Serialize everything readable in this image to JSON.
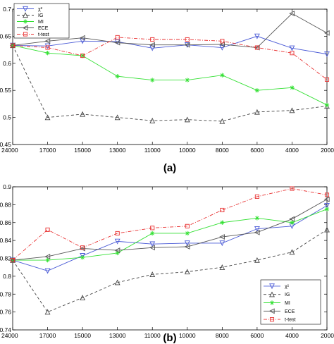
{
  "chart_data": [
    {
      "type": "line",
      "caption": "(a)",
      "x": [
        "24000",
        "17000",
        "15000",
        "13000",
        "11000",
        "10000",
        "8000",
        "6000",
        "4000",
        "2000"
      ],
      "ylim": [
        0.45,
        0.7
      ],
      "yticks": [
        "0.45",
        "0.5",
        "0.55",
        "0.6",
        "0.65",
        "0.7"
      ],
      "legend_position": "top-left",
      "series": [
        {
          "name": "χ²",
          "values": [
            0.633,
            0.632,
            0.641,
            0.64,
            0.628,
            0.634,
            0.629,
            0.65,
            0.628,
            0.617
          ],
          "color": "#4a5ad6",
          "dash": "",
          "marker": "triangle-down"
        },
        {
          "name": "IG",
          "values": [
            0.633,
            0.5,
            0.506,
            0.5,
            0.494,
            0.496,
            0.493,
            0.51,
            0.513,
            0.521
          ],
          "color": "#444444",
          "dash": "4,3",
          "marker": "triangle-up"
        },
        {
          "name": "MI",
          "values": [
            0.633,
            0.619,
            0.614,
            0.576,
            0.569,
            0.569,
            0.578,
            0.55,
            0.555,
            0.523
          ],
          "color": "#33e033",
          "dash": "",
          "marker": "star"
        },
        {
          "name": "ECE",
          "values": [
            0.633,
            0.641,
            0.647,
            0.638,
            0.634,
            0.634,
            0.635,
            0.629,
            0.692,
            0.656
          ],
          "color": "#555555",
          "dash": "",
          "marker": "triangle-left"
        },
        {
          "name": "t-test",
          "values": [
            0.633,
            0.629,
            0.614,
            0.648,
            0.644,
            0.644,
            0.641,
            0.629,
            0.619,
            0.57
          ],
          "color": "#e83030",
          "dash": "5,2,1,2",
          "marker": "square"
        }
      ]
    },
    {
      "type": "line",
      "caption": "(b)",
      "x": [
        "24000",
        "17000",
        "15000",
        "13000",
        "11000",
        "10000",
        "8000",
        "6000",
        "4000",
        "2000"
      ],
      "ylim": [
        0.74,
        0.9
      ],
      "yticks": [
        "0.74",
        "0.76",
        "0.78",
        "0.8",
        "0.82",
        "0.84",
        "0.86",
        "0.88",
        "0.9"
      ],
      "legend_position": "bottom-right",
      "series": [
        {
          "name": "χ²",
          "values": [
            0.818,
            0.806,
            0.823,
            0.839,
            0.836,
            0.837,
            0.837,
            0.853,
            0.856,
            0.879
          ],
          "color": "#4a5ad6",
          "dash": "",
          "marker": "triangle-down"
        },
        {
          "name": "IG",
          "values": [
            0.818,
            0.76,
            0.776,
            0.793,
            0.802,
            0.805,
            0.81,
            0.818,
            0.827,
            0.852
          ],
          "color": "#444444",
          "dash": "4,3",
          "marker": "triangle-up"
        },
        {
          "name": "MI",
          "values": [
            0.818,
            0.818,
            0.821,
            0.826,
            0.848,
            0.848,
            0.86,
            0.865,
            0.86,
            0.875
          ],
          "color": "#33e033",
          "dash": "",
          "marker": "star"
        },
        {
          "name": "ECE",
          "values": [
            0.818,
            0.822,
            0.831,
            0.829,
            0.832,
            0.833,
            0.844,
            0.849,
            0.864,
            0.886
          ],
          "color": "#555555",
          "dash": "",
          "marker": "triangle-left"
        },
        {
          "name": "t-test",
          "values": [
            0.818,
            0.852,
            0.832,
            0.848,
            0.854,
            0.856,
            0.874,
            0.889,
            0.898,
            0.891
          ],
          "color": "#e83030",
          "dash": "5,2,1,2",
          "marker": "square"
        }
      ]
    }
  ]
}
